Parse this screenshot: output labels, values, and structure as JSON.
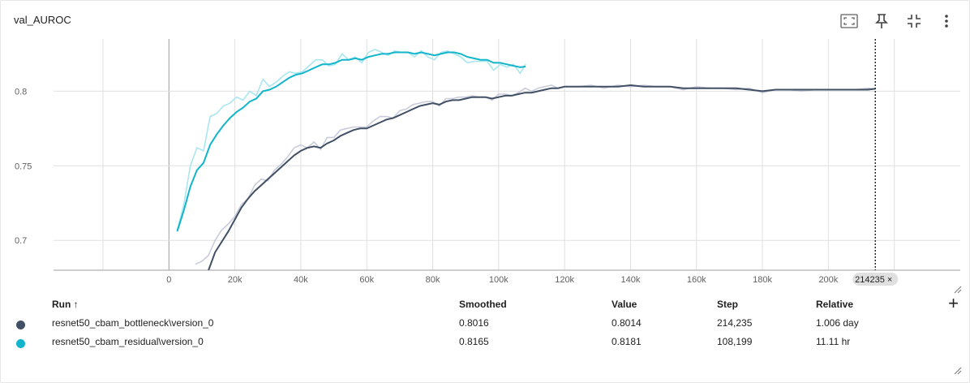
{
  "card": {
    "title": "val_AUROC",
    "toolbar": {
      "fit_icon": "fit-domain-icon",
      "pin_icon": "pin-icon",
      "collapse_icon": "collapse-icon",
      "more_icon": "more-vert-icon"
    }
  },
  "chart_data": {
    "type": "line",
    "title": "",
    "xlabel": "",
    "ylabel": "",
    "x_ticks": [
      "0",
      "20k",
      "40k",
      "60k",
      "80k",
      "100k",
      "120k",
      "140k",
      "160k",
      "180k",
      "200k"
    ],
    "x_ticks_values": [
      0,
      20000,
      40000,
      60000,
      80000,
      100000,
      120000,
      140000,
      160000,
      180000,
      200000
    ],
    "y_ticks": [
      "0.7",
      "0.75",
      "0.8"
    ],
    "y_ticks_values": [
      0.7,
      0.75,
      0.8
    ],
    "xlim": [
      -35000,
      240000
    ],
    "ylim": [
      0.68,
      0.835
    ],
    "grid": true,
    "hover_marker": {
      "x": 214235,
      "label": "214235"
    },
    "series": [
      {
        "name": "resnet50_cbam_bottleneck\\version_0",
        "color": "#425066",
        "raw_color": "#c9ccdb",
        "smoothed": [
          [
            12000,
            0.68
          ],
          [
            14000,
            0.692
          ],
          [
            16000,
            0.699
          ],
          [
            18000,
            0.706
          ],
          [
            20000,
            0.714
          ],
          [
            22000,
            0.722
          ],
          [
            24000,
            0.728
          ],
          [
            26000,
            0.733
          ],
          [
            28000,
            0.737
          ],
          [
            30000,
            0.741
          ],
          [
            32000,
            0.745
          ],
          [
            34000,
            0.749
          ],
          [
            36000,
            0.753
          ],
          [
            38000,
            0.757
          ],
          [
            40000,
            0.76
          ],
          [
            42000,
            0.762
          ],
          [
            44000,
            0.763
          ],
          [
            46000,
            0.762
          ],
          [
            48000,
            0.765
          ],
          [
            50000,
            0.767
          ],
          [
            52000,
            0.77
          ],
          [
            54000,
            0.772
          ],
          [
            56000,
            0.774
          ],
          [
            58000,
            0.775
          ],
          [
            60000,
            0.775
          ],
          [
            62000,
            0.777
          ],
          [
            64000,
            0.779
          ],
          [
            66000,
            0.781
          ],
          [
            68000,
            0.782
          ],
          [
            70000,
            0.784
          ],
          [
            72000,
            0.786
          ],
          [
            74000,
            0.788
          ],
          [
            76000,
            0.79
          ],
          [
            78000,
            0.791
          ],
          [
            80000,
            0.792
          ],
          [
            82000,
            0.791
          ],
          [
            84000,
            0.793
          ],
          [
            86000,
            0.794
          ],
          [
            88000,
            0.794
          ],
          [
            90000,
            0.795
          ],
          [
            92000,
            0.796
          ],
          [
            94000,
            0.796
          ],
          [
            96000,
            0.796
          ],
          [
            98000,
            0.795
          ],
          [
            100000,
            0.796
          ],
          [
            102000,
            0.797
          ],
          [
            104000,
            0.797
          ],
          [
            106000,
            0.798
          ],
          [
            108000,
            0.799
          ],
          [
            110000,
            0.799
          ],
          [
            112000,
            0.8
          ],
          [
            114000,
            0.801
          ],
          [
            116000,
            0.802
          ],
          [
            118000,
            0.802
          ],
          [
            120000,
            0.803
          ],
          [
            124000,
            0.803
          ],
          [
            128000,
            0.803
          ],
          [
            132000,
            0.803
          ],
          [
            136000,
            0.803
          ],
          [
            140000,
            0.804
          ],
          [
            144000,
            0.803
          ],
          [
            148000,
            0.803
          ],
          [
            152000,
            0.803
          ],
          [
            156000,
            0.802
          ],
          [
            160000,
            0.802
          ],
          [
            164000,
            0.802
          ],
          [
            168000,
            0.802
          ],
          [
            172000,
            0.802
          ],
          [
            176000,
            0.801
          ],
          [
            180000,
            0.8
          ],
          [
            184000,
            0.801
          ],
          [
            188000,
            0.801
          ],
          [
            192000,
            0.801
          ],
          [
            196000,
            0.801
          ],
          [
            200000,
            0.801
          ],
          [
            204000,
            0.801
          ],
          [
            208000,
            0.801
          ],
          [
            212000,
            0.801
          ],
          [
            214235,
            0.8016
          ]
        ],
        "raw": [
          [
            8000,
            0.684
          ],
          [
            10000,
            0.686
          ],
          [
            12000,
            0.69
          ],
          [
            14000,
            0.7
          ],
          [
            16000,
            0.707
          ],
          [
            18000,
            0.711
          ],
          [
            20000,
            0.716
          ],
          [
            22000,
            0.724
          ],
          [
            24000,
            0.728
          ],
          [
            26000,
            0.737
          ],
          [
            28000,
            0.741
          ],
          [
            30000,
            0.74
          ],
          [
            32000,
            0.747
          ],
          [
            34000,
            0.751
          ],
          [
            36000,
            0.756
          ],
          [
            38000,
            0.762
          ],
          [
            40000,
            0.764
          ],
          [
            42000,
            0.762
          ],
          [
            44000,
            0.766
          ],
          [
            46000,
            0.761
          ],
          [
            48000,
            0.769
          ],
          [
            50000,
            0.769
          ],
          [
            52000,
            0.774
          ],
          [
            54000,
            0.775
          ],
          [
            56000,
            0.776
          ],
          [
            58000,
            0.776
          ],
          [
            60000,
            0.776
          ],
          [
            62000,
            0.78
          ],
          [
            64000,
            0.783
          ],
          [
            66000,
            0.783
          ],
          [
            68000,
            0.782
          ],
          [
            70000,
            0.787
          ],
          [
            72000,
            0.788
          ],
          [
            74000,
            0.791
          ],
          [
            76000,
            0.792
          ],
          [
            78000,
            0.793
          ],
          [
            80000,
            0.793
          ],
          [
            82000,
            0.79
          ],
          [
            84000,
            0.795
          ],
          [
            86000,
            0.795
          ],
          [
            88000,
            0.796
          ],
          [
            90000,
            0.796
          ],
          [
            92000,
            0.797
          ],
          [
            94000,
            0.796
          ],
          [
            96000,
            0.796
          ],
          [
            98000,
            0.794
          ],
          [
            100000,
            0.798
          ],
          [
            102000,
            0.798
          ],
          [
            104000,
            0.797
          ],
          [
            106000,
            0.799
          ],
          [
            108000,
            0.802
          ],
          [
            110000,
            0.8
          ],
          [
            112000,
            0.802
          ],
          [
            114000,
            0.803
          ],
          [
            116000,
            0.804
          ],
          [
            118000,
            0.802
          ],
          [
            120000,
            0.803
          ],
          [
            124000,
            0.803
          ],
          [
            128000,
            0.804
          ],
          [
            132000,
            0.802
          ],
          [
            136000,
            0.804
          ],
          [
            140000,
            0.803
          ],
          [
            144000,
            0.804
          ],
          [
            148000,
            0.803
          ],
          [
            152000,
            0.803
          ],
          [
            156000,
            0.801
          ],
          [
            160000,
            0.803
          ],
          [
            164000,
            0.802
          ],
          [
            168000,
            0.802
          ],
          [
            172000,
            0.801
          ],
          [
            176000,
            0.802
          ],
          [
            180000,
            0.799
          ],
          [
            184000,
            0.801
          ],
          [
            188000,
            0.801
          ],
          [
            192000,
            0.8
          ],
          [
            196000,
            0.801
          ],
          [
            200000,
            0.801
          ],
          [
            204000,
            0.801
          ],
          [
            208000,
            0.801
          ],
          [
            212000,
            0.802
          ],
          [
            214235,
            0.8014
          ]
        ]
      },
      {
        "name": "resnet50_cbam_residual\\version_0",
        "color": "#12b5cb",
        "raw_color": "#a9e6f0",
        "smoothed": [
          [
            2500,
            0.706
          ],
          [
            4500,
            0.72
          ],
          [
            6500,
            0.736
          ],
          [
            8500,
            0.747
          ],
          [
            10500,
            0.752
          ],
          [
            12500,
            0.764
          ],
          [
            14500,
            0.771
          ],
          [
            16500,
            0.777
          ],
          [
            18500,
            0.782
          ],
          [
            20500,
            0.786
          ],
          [
            22500,
            0.789
          ],
          [
            24500,
            0.793
          ],
          [
            26500,
            0.795
          ],
          [
            28500,
            0.8
          ],
          [
            30500,
            0.801
          ],
          [
            32500,
            0.803
          ],
          [
            34500,
            0.806
          ],
          [
            36500,
            0.809
          ],
          [
            38500,
            0.811
          ],
          [
            40500,
            0.812
          ],
          [
            42500,
            0.814
          ],
          [
            44500,
            0.816
          ],
          [
            46500,
            0.818
          ],
          [
            48500,
            0.818
          ],
          [
            50500,
            0.819
          ],
          [
            52500,
            0.821
          ],
          [
            54500,
            0.821
          ],
          [
            56500,
            0.822
          ],
          [
            58500,
            0.821
          ],
          [
            60500,
            0.823
          ],
          [
            62500,
            0.824
          ],
          [
            64500,
            0.825
          ],
          [
            66500,
            0.825
          ],
          [
            68500,
            0.826
          ],
          [
            70500,
            0.826
          ],
          [
            72500,
            0.826
          ],
          [
            74500,
            0.825
          ],
          [
            76500,
            0.826
          ],
          [
            78500,
            0.825
          ],
          [
            80500,
            0.824
          ],
          [
            82500,
            0.825
          ],
          [
            84500,
            0.826
          ],
          [
            86500,
            0.826
          ],
          [
            88500,
            0.825
          ],
          [
            90500,
            0.823
          ],
          [
            92500,
            0.822
          ],
          [
            94500,
            0.821
          ],
          [
            96500,
            0.821
          ],
          [
            98500,
            0.819
          ],
          [
            100500,
            0.819
          ],
          [
            102500,
            0.818
          ],
          [
            104500,
            0.817
          ],
          [
            106500,
            0.816
          ],
          [
            108199,
            0.8165
          ]
        ],
        "raw": [
          [
            2500,
            0.707
          ],
          [
            4500,
            0.724
          ],
          [
            6500,
            0.75
          ],
          [
            8500,
            0.762
          ],
          [
            10500,
            0.76
          ],
          [
            12500,
            0.783
          ],
          [
            14500,
            0.785
          ],
          [
            16500,
            0.79
          ],
          [
            18500,
            0.792
          ],
          [
            20500,
            0.796
          ],
          [
            22500,
            0.794
          ],
          [
            24500,
            0.8
          ],
          [
            26500,
            0.797
          ],
          [
            28500,
            0.808
          ],
          [
            30500,
            0.803
          ],
          [
            32500,
            0.806
          ],
          [
            34500,
            0.81
          ],
          [
            36500,
            0.813
          ],
          [
            38500,
            0.812
          ],
          [
            40500,
            0.813
          ],
          [
            42500,
            0.817
          ],
          [
            44500,
            0.821
          ],
          [
            46500,
            0.821
          ],
          [
            48500,
            0.817
          ],
          [
            50500,
            0.818
          ],
          [
            52500,
            0.825
          ],
          [
            54500,
            0.821
          ],
          [
            56500,
            0.823
          ],
          [
            58500,
            0.819
          ],
          [
            60500,
            0.826
          ],
          [
            62500,
            0.828
          ],
          [
            64500,
            0.826
          ],
          [
            66500,
            0.824
          ],
          [
            68500,
            0.827
          ],
          [
            70500,
            0.826
          ],
          [
            72500,
            0.826
          ],
          [
            74500,
            0.823
          ],
          [
            76500,
            0.827
          ],
          [
            78500,
            0.823
          ],
          [
            80500,
            0.821
          ],
          [
            82500,
            0.826
          ],
          [
            84500,
            0.827
          ],
          [
            86500,
            0.825
          ],
          [
            88500,
            0.823
          ],
          [
            90500,
            0.819
          ],
          [
            92500,
            0.82
          ],
          [
            94500,
            0.82
          ],
          [
            96500,
            0.82
          ],
          [
            98500,
            0.814
          ],
          [
            100500,
            0.818
          ],
          [
            102500,
            0.816
          ],
          [
            104500,
            0.818
          ],
          [
            106500,
            0.812
          ],
          [
            108199,
            0.8181
          ]
        ]
      }
    ]
  },
  "table": {
    "headers": {
      "run": "Run ↑",
      "smoothed": "Smoothed",
      "value": "Value",
      "step": "Step",
      "relative": "Relative"
    },
    "rows": [
      {
        "color": "#425066",
        "run": "resnet50_cbam_bottleneck\\version_0",
        "smoothed": "0.8016",
        "value": "0.8014",
        "step": "214,235",
        "relative": "1.006 day"
      },
      {
        "color": "#12b5cb",
        "run": "resnet50_cbam_residual\\version_0",
        "smoothed": "0.8165",
        "value": "0.8181",
        "step": "108,199",
        "relative": "11.11 hr"
      }
    ],
    "add_label": "+"
  }
}
